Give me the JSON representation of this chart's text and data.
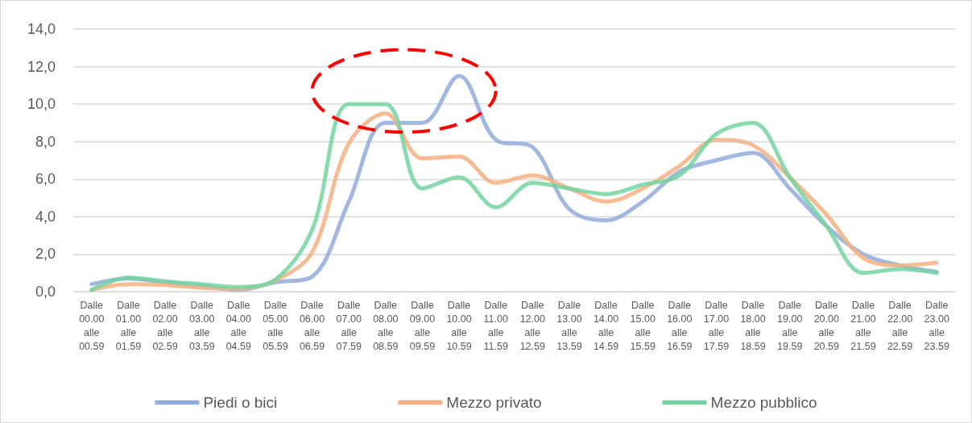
{
  "chart_data": {
    "type": "line",
    "categories": [
      "Dalle 00.00 alle 00.59",
      "Dalle 01.00 alle 01.59",
      "Dalle 02.00 alle 02.59",
      "Dalle 03.00 alle 03.59",
      "Dalle 04.00 alle 04.59",
      "Dalle 05.00 alle 05.59",
      "Dalle 06.00 alle 06.59",
      "Dalle 07.00 alle 07.59",
      "Dalle 08.00 alle 08.59",
      "Dalle 09.00 alle 09.59",
      "Dalle 10.00 alle 10.59",
      "Dalle 11.00 alle 11.59",
      "Dalle 12.00 alle 12.59",
      "Dalle 13.00 alle 13.59",
      "Dalle 14.00 alle 14.59",
      "Dalle 15.00 alle 15.59",
      "Dalle 16.00 alle 16.59",
      "Dalle 17.00 alle 17.59",
      "Dalle 18.00 alle 18.59",
      "Dalle 19.00 alle 19.59",
      "Dalle 20.00 alle 20.59",
      "Dalle 21.00 alle 21.59",
      "Dalle 22.00 alle 22.59",
      "Dalle 23.00 alle 23.59"
    ],
    "series": [
      {
        "name": "Piedi o bici",
        "color": "#92acdc",
        "values": [
          0.4,
          0.7,
          0.5,
          0.3,
          0.1,
          0.5,
          0.8,
          4.8,
          9.0,
          9.0,
          11.5,
          8.1,
          7.7,
          4.4,
          3.8,
          4.8,
          6.4,
          7.0,
          7.4,
          5.5,
          3.5,
          2.0,
          1.4,
          1.05
        ]
      },
      {
        "name": "Mezzo privato",
        "color": "#f4b183",
        "values": [
          0.1,
          0.4,
          0.35,
          0.2,
          0.15,
          0.6,
          2.1,
          7.9,
          9.5,
          7.1,
          7.2,
          5.8,
          6.2,
          5.5,
          4.8,
          5.5,
          6.7,
          8.1,
          7.8,
          6.1,
          4.1,
          1.8,
          1.4,
          1.55
        ]
      },
      {
        "name": "Mezzo pubblico",
        "color": "#74d3a0",
        "values": [
          0.1,
          0.75,
          0.55,
          0.4,
          0.25,
          0.65,
          3.3,
          10.0,
          10.0,
          5.5,
          6.1,
          4.5,
          5.8,
          5.5,
          5.2,
          5.7,
          6.2,
          8.4,
          9.0,
          6.1,
          3.5,
          1.0,
          1.2,
          1.0
        ]
      }
    ],
    "ylim": [
      0,
      14
    ],
    "yticks": [
      {
        "value": 0,
        "label": "0,0"
      },
      {
        "value": 2,
        "label": "2,0"
      },
      {
        "value": 4,
        "label": "4,0"
      },
      {
        "value": 6,
        "label": "6,0"
      },
      {
        "value": 8,
        "label": "8,0"
      },
      {
        "value": 10,
        "label": "10,0"
      },
      {
        "value": 12,
        "label": "12,0"
      },
      {
        "value": 14,
        "label": "14,0"
      }
    ],
    "grid": "y",
    "legend": "bottom",
    "marker": "none",
    "line_style": "solid"
  }
}
